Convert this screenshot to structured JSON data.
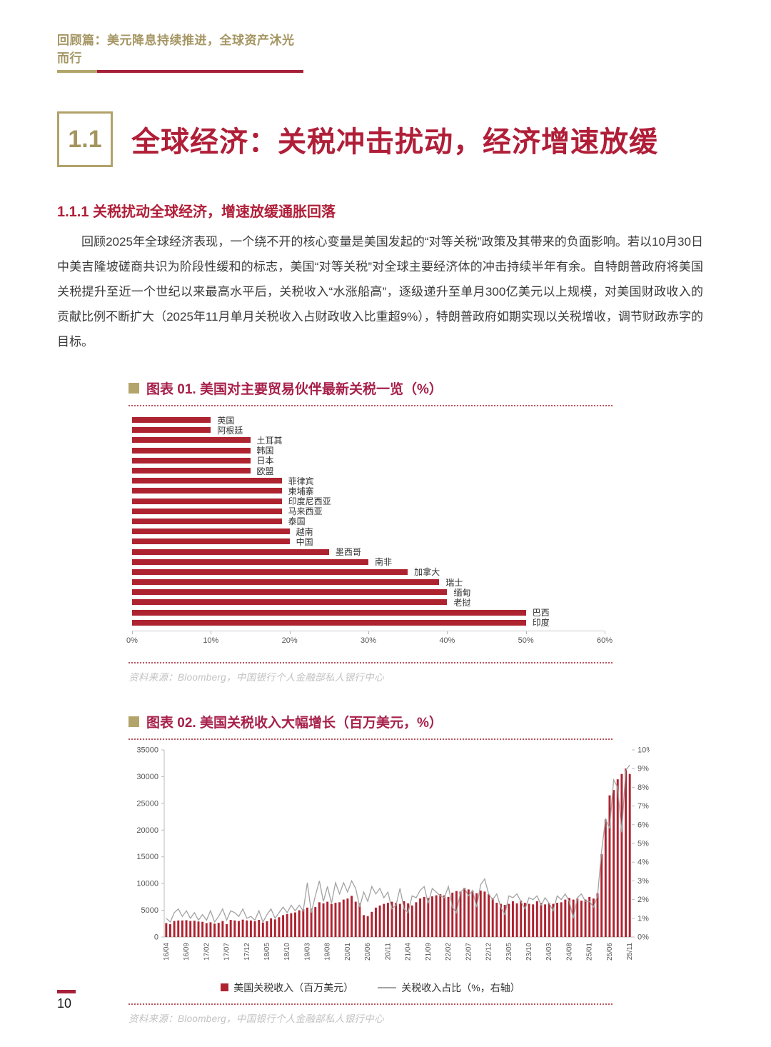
{
  "header": {
    "text": "回顾篇：美元降息持续推进，全球资产沐光而行"
  },
  "section": {
    "number": "1.1",
    "title": "全球经济：关税冲击扰动，经济增速放缓"
  },
  "subsection": "1.1.1 关税扰动全球经济，增速放缓通胀回落",
  "paragraph": "回顾2025年全球经济表现，一个绕不开的核心变量是美国发起的“对等关税”政策及其带来的负面影响。若以10月30日中美吉隆坡磋商共识为阶段性缓和的标志，美国“对等关税”对全球主要经济体的冲击持续半年有余。自特朗普政府将美国关税提升至近一个世纪以来最高水平后，关税收入“水涨船高”，逐级递升至单月300亿美元以上规模，对美国财政收入的贡献比例不断扩大（2025年11月单月关税收入占财政收入比重超9%），特朗普政府如期实现以关税增收，调节财政赤字的目标。",
  "source_note": "资料来源：Bloomberg，中国银行个人金融部私人银行中心",
  "page_number": "10",
  "colors": {
    "crimson": "#B01E38",
    "gold": "#B3A46C",
    "bar_red": "#AE2330",
    "line_gray": "#a3a3a3"
  },
  "chart_data": [
    {
      "type": "bar",
      "orientation": "horizontal",
      "title": "图表 01. 美国对主要贸易伙伴最新关税一览（%）",
      "categories": [
        "英国",
        "阿根廷",
        "土耳其",
        "韩国",
        "日本",
        "欧盟",
        "菲律宾",
        "柬埔寨",
        "印度尼西亚",
        "马来西亚",
        "泰国",
        "越南",
        "中国",
        "墨西哥",
        "南非",
        "加拿大",
        "瑞士",
        "缅甸",
        "老挝",
        "巴西",
        "印度"
      ],
      "values": [
        10,
        10,
        15,
        15,
        15,
        15,
        19,
        19,
        19,
        19,
        19,
        20,
        20,
        25,
        30,
        35,
        39,
        40,
        40,
        50,
        50
      ],
      "xlim": [
        0,
        60
      ],
      "x_ticks": [
        "0%",
        "10%",
        "20%",
        "30%",
        "40%",
        "50%",
        "60%"
      ],
      "grid": false,
      "unit": "%"
    },
    {
      "type": "bar+line",
      "title": "图表 02. 美国关税收入大幅增长（百万美元，%）",
      "x": [
        "16/04",
        "16/05",
        "16/06",
        "16/07",
        "16/08",
        "16/09",
        "16/10",
        "16/11",
        "16/12",
        "17/01",
        "17/02",
        "17/03",
        "17/04",
        "17/05",
        "17/06",
        "17/07",
        "17/08",
        "17/09",
        "17/10",
        "17/11",
        "17/12",
        "18/01",
        "18/02",
        "18/03",
        "18/04",
        "18/05",
        "18/06",
        "18/07",
        "18/08",
        "18/09",
        "18/10",
        "18/11",
        "18/12",
        "19/01",
        "19/02",
        "19/03",
        "19/04",
        "19/05",
        "19/06",
        "19/07",
        "19/08",
        "19/09",
        "19/10",
        "19/11",
        "19/12",
        "20/01",
        "20/02",
        "20/03",
        "20/04",
        "20/05",
        "20/06",
        "20/07",
        "20/08",
        "20/09",
        "20/10",
        "20/11",
        "20/12",
        "21/01",
        "21/02",
        "21/03",
        "21/04",
        "21/05",
        "21/06",
        "21/07",
        "21/08",
        "21/09",
        "21/10",
        "21/11",
        "21/12",
        "22/01",
        "22/02",
        "22/03",
        "22/04",
        "22/05",
        "22/06",
        "22/07",
        "22/08",
        "22/09",
        "22/10",
        "22/11",
        "22/12",
        "23/01",
        "23/02",
        "23/03",
        "23/04",
        "23/05",
        "23/06",
        "23/07",
        "23/08",
        "23/09",
        "23/10",
        "23/11",
        "23/12",
        "24/01",
        "24/02",
        "24/03",
        "24/04",
        "24/05",
        "24/06",
        "24/07",
        "24/08",
        "24/09",
        "24/10",
        "24/11",
        "24/12",
        "25/01",
        "25/02",
        "25/03",
        "25/04",
        "25/05",
        "25/06",
        "25/07",
        "25/08",
        "25/09",
        "25/10",
        "25/11"
      ],
      "x_tick_every": 5,
      "series": [
        {
          "name": "美国关税收入（百万美元）",
          "type": "bar",
          "axis": "left",
          "values": [
            2600,
            2400,
            3000,
            3100,
            3100,
            3150,
            3000,
            3050,
            2900,
            2850,
            2600,
            2750,
            2500,
            2650,
            3000,
            2400,
            3200,
            3100,
            3000,
            3250,
            3100,
            3100,
            2950,
            3200,
            2700,
            2950,
            3500,
            3300,
            3700,
            4100,
            4300,
            4450,
            4600,
            5000,
            5200,
            5500,
            5300,
            5600,
            6500,
            6300,
            6600,
            6200,
            6400,
            6500,
            7000,
            7200,
            7700,
            6600,
            6300,
            4100,
            3900,
            4700,
            5500,
            5900,
            6200,
            6400,
            6600,
            6400,
            6200,
            6700,
            6300,
            5900,
            6500,
            7200,
            7500,
            7300,
            7600,
            7800,
            8000,
            7800,
            7500,
            8300,
            8600,
            8500,
            9200,
            8900,
            8600,
            8200,
            8700,
            8500,
            8000,
            7300,
            6400,
            6200,
            6000,
            6200,
            6700,
            6300,
            6800,
            6400,
            6200,
            6100,
            6700,
            6400,
            6100,
            6300,
            6200,
            6400,
            6500,
            7000,
            7300,
            7000,
            7200,
            6800,
            7000,
            7500,
            7200,
            8200,
            15500,
            22000,
            26500,
            27500,
            29500,
            30500,
            31500,
            30500
          ]
        },
        {
          "name": "关税收入占比（%，右轴）",
          "type": "line",
          "axis": "right",
          "values": [
            1.0,
            0.8,
            1.3,
            1.5,
            1.1,
            1.4,
            1.0,
            1.3,
            0.9,
            1.2,
            0.9,
            1.4,
            0.8,
            1.1,
            1.5,
            0.9,
            1.4,
            1.3,
            1.1,
            1.5,
            1.0,
            1.1,
            0.9,
            1.4,
            0.8,
            1.2,
            1.5,
            1.0,
            1.3,
            1.6,
            1.3,
            1.7,
            1.4,
            1.7,
            1.4,
            2.9,
            1.3,
            2.2,
            3.0,
            1.9,
            2.7,
            1.8,
            2.9,
            2.3,
            2.9,
            2.4,
            3.0,
            2.6,
            1.6,
            2.4,
            1.9,
            2.7,
            2.3,
            2.6,
            2.1,
            2.4,
            1.5,
            1.7,
            2.6,
            1.5,
            1.3,
            2.2,
            2.1,
            2.5,
            2.7,
            1.8,
            2.6,
            2.4,
            2.2,
            2.1,
            2.7,
            1.6,
            1.3,
            2.4,
            2.6,
            2.2,
            2.5,
            1.6,
            2.8,
            3.1,
            2.3,
            2.0,
            2.3,
            1.6,
            1.2,
            2.2,
            2.1,
            2.3,
            1.9,
            1.5,
            2.1,
            2.0,
            2.2,
            1.7,
            2.1,
            1.8,
            1.4,
            2.2,
            2.0,
            2.3,
            1.9,
            1.0,
            2.1,
            2.3,
            1.9,
            1.9,
            1.6,
            2.2,
            4.6,
            6.3,
            5.8,
            8.4,
            8.0,
            5.6,
            8.9,
            9.2
          ]
        }
      ],
      "left_ylim": [
        0,
        35000
      ],
      "left_ticks": [
        0,
        5000,
        10000,
        15000,
        20000,
        25000,
        30000,
        35000
      ],
      "right_ylim": [
        0,
        10
      ],
      "right_ticks": [
        "0%",
        "1%",
        "2%",
        "3%",
        "4%",
        "5%",
        "6%",
        "7%",
        "8%",
        "9%",
        "10%"
      ],
      "grid": false,
      "legend_position": "bottom"
    }
  ]
}
